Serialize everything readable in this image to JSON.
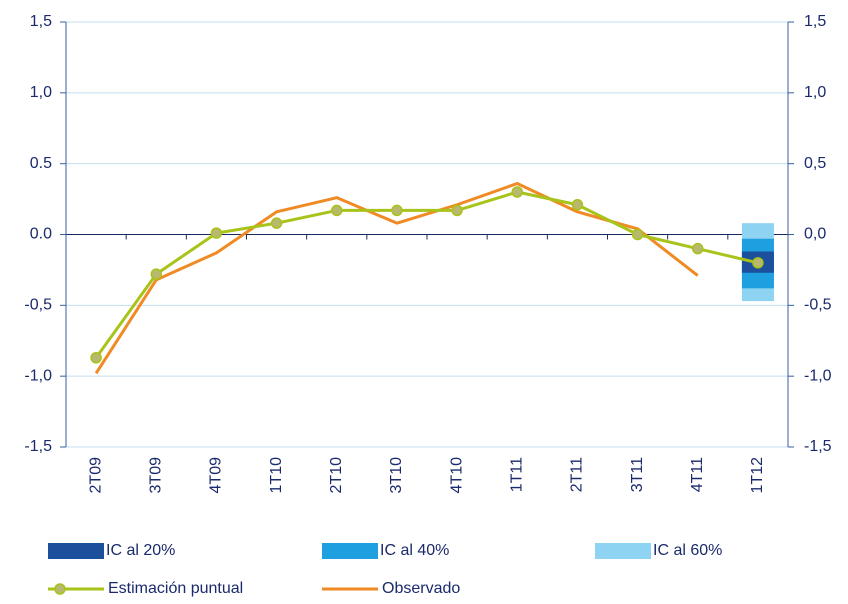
{
  "chart_data": {
    "type": "line",
    "categories": [
      "2T09",
      "3T09",
      "4T09",
      "1T10",
      "2T10",
      "3T10",
      "4T10",
      "1T11",
      "2T11",
      "3T11",
      "4T11",
      "1T12"
    ],
    "ylim": [
      -1.5,
      1.5
    ],
    "yticks": [
      {
        "value": 1.5,
        "label": "1,5"
      },
      {
        "value": 1.0,
        "label": "1,0"
      },
      {
        "value": 0.5,
        "label": "0.5"
      },
      {
        "value": 0,
        "label": "0.0"
      },
      {
        "value": -0.5,
        "label": "-0,5"
      },
      {
        "value": -1.0,
        "label": "-1,0"
      },
      {
        "value": -1.5,
        "label": "-1,5"
      }
    ],
    "y2lim": [
      -1.5,
      1.5
    ],
    "y2ticks": [
      {
        "value": 1.5,
        "label": "1,5"
      },
      {
        "value": 1.0,
        "label": "1,0"
      },
      {
        "value": 0.5,
        "label": "0,5"
      },
      {
        "value": 0,
        "label": "0,0"
      },
      {
        "value": -0.5,
        "label": "-0,5"
      },
      {
        "value": -1.0,
        "label": "-1,0"
      },
      {
        "value": -1.5,
        "label": "-1,5"
      }
    ],
    "grid": true,
    "ranges": [
      {
        "name": "IC al 60%",
        "color": "#8fd3f3",
        "category": "1T12",
        "low": -0.47,
        "high": 0.08
      },
      {
        "name": "IC al 40%",
        "color": "#1ea0e0",
        "category": "1T12",
        "low": -0.38,
        "high": -0.03
      },
      {
        "name": "IC al 20%",
        "color": "#1c4f9c",
        "category": "1T12",
        "low": -0.27,
        "high": -0.12
      }
    ],
    "series": [
      {
        "name": "Estimación puntual",
        "color": "#a8c31a",
        "marker_color": "#b8b86e",
        "values": [
          -0.87,
          -0.28,
          0.01,
          0.08,
          0.17,
          0.17,
          0.17,
          0.3,
          0.21,
          0.0,
          -0.1,
          -0.2
        ]
      },
      {
        "name": "Observado",
        "color": "#f08a24",
        "values": [
          -0.98,
          -0.32,
          -0.13,
          0.16,
          0.26,
          0.08,
          0.21,
          0.36,
          0.16,
          0.04,
          -0.29,
          null
        ]
      }
    ]
  }
}
